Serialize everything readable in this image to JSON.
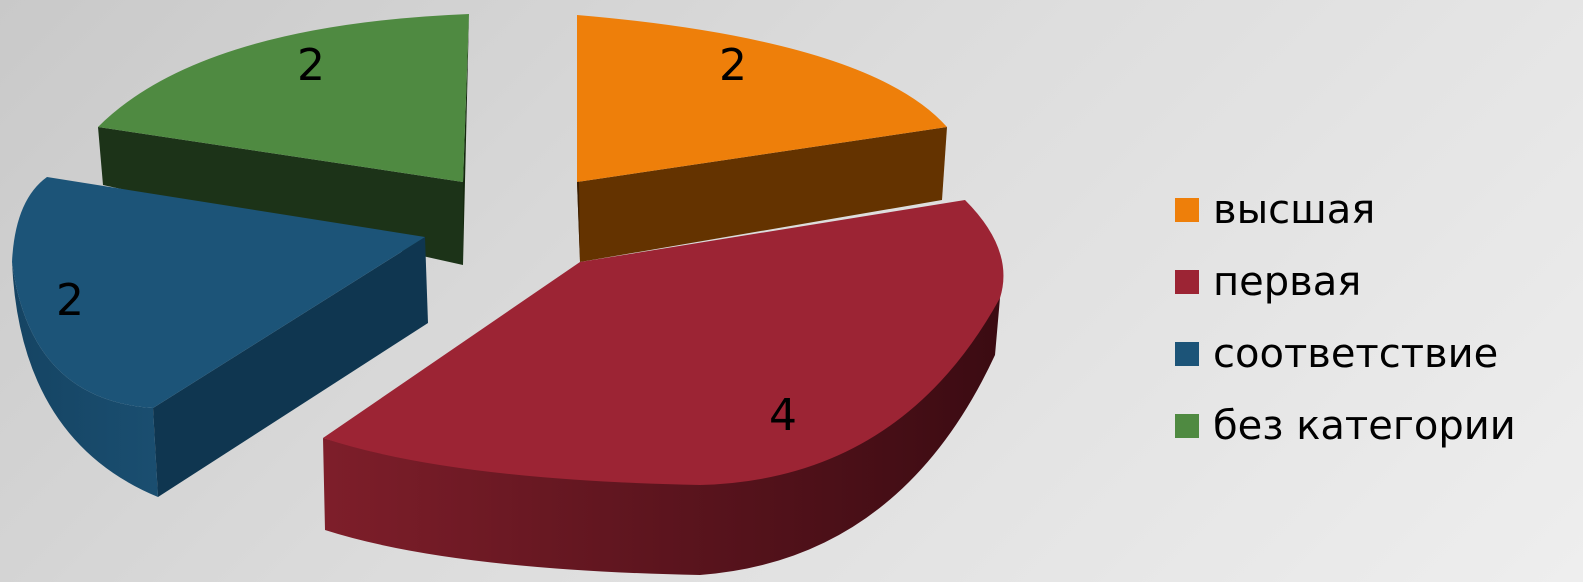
{
  "chart_data": {
    "type": "pie",
    "style": "3d-exploded",
    "categories": [
      "высшая",
      "первая",
      "соответствие",
      "без категории"
    ],
    "values": [
      2,
      4,
      2,
      2
    ],
    "data_labels": [
      "2",
      "4",
      "2",
      "2"
    ],
    "colors": [
      "#ee7f0a",
      "#9c2434",
      "#1c5478",
      "#4f8a41"
    ],
    "side_colors": [
      "#643300",
      "#4a0f16",
      "#0f3650",
      "#1c3318"
    ],
    "title": "",
    "legend_position": "right"
  }
}
